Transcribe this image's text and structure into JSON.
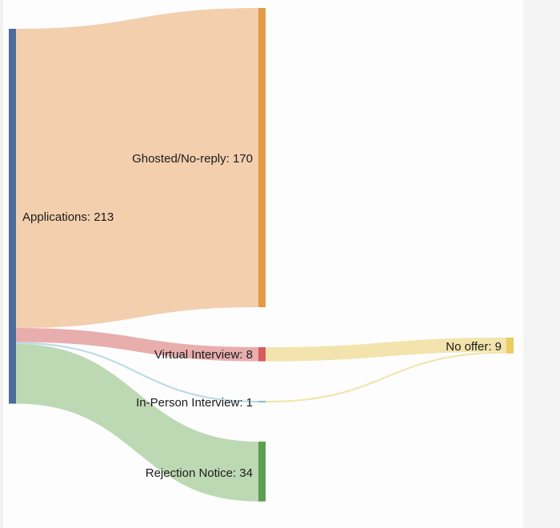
{
  "chart_data": {
    "type": "sankey",
    "nodes": [
      {
        "id": "applications",
        "name": "Applications",
        "value": 213,
        "label": "Applications: 213",
        "color": "#4c6d9c"
      },
      {
        "id": "ghosted",
        "name": "Ghosted/No-reply",
        "value": 170,
        "label": "Ghosted/No-reply: 170",
        "color": "#e39b48"
      },
      {
        "id": "virtual",
        "name": "Virtual Interview",
        "value": 8,
        "label": "Virtual Interview: 8",
        "color": "#d85c5c"
      },
      {
        "id": "inperson",
        "name": "In-Person Interview",
        "value": 1,
        "label": "In-Person Interview: 1",
        "color": "#8ebfd0"
      },
      {
        "id": "rejection",
        "name": "Rejection Notice",
        "value": 34,
        "label": "Rejection Notice: 34",
        "color": "#5e9e4f"
      },
      {
        "id": "nooffer",
        "name": "No offer",
        "value": 9,
        "label": "No offer: 9",
        "color": "#ebcc5e"
      }
    ],
    "links": [
      {
        "source": "applications",
        "target": "ghosted",
        "value": 170,
        "color": "#f2ccaa"
      },
      {
        "source": "applications",
        "target": "virtual",
        "value": 8,
        "color": "#e7a9a9"
      },
      {
        "source": "applications",
        "target": "inperson",
        "value": 1,
        "color": "#b7d8e5"
      },
      {
        "source": "applications",
        "target": "rejection",
        "value": 34,
        "color": "#b9d7b0"
      },
      {
        "source": "virtual",
        "target": "nooffer",
        "value": 8,
        "color": "#f1e3a8"
      },
      {
        "source": "inperson",
        "target": "nooffer",
        "value": 1,
        "color": "#f1e3a8"
      }
    ]
  }
}
